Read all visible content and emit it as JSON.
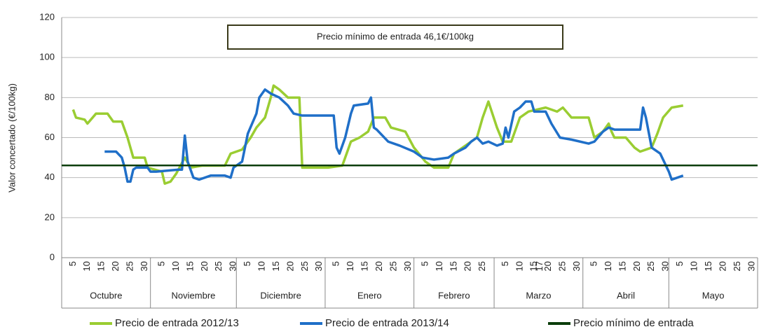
{
  "chart_data": {
    "type": "line",
    "annotation": "Precio mínimo de entrada 46,1€/100kg",
    "ylabel": "Valor concertado (€/100kg)",
    "ylim": [
      0,
      120
    ],
    "yticks": [
      0,
      20,
      40,
      60,
      80,
      100,
      120
    ],
    "grid": true,
    "xlim": [
      0,
      243
    ],
    "months": [
      "Octubre",
      "Noviembre",
      "Diciembre",
      "Enero",
      "Febrero",
      "Marzo",
      "Abril",
      "Mayo"
    ],
    "month_bounds": [
      0,
      31,
      61,
      92,
      123,
      151,
      182,
      212,
      243
    ],
    "xticks": [
      {
        "value": 4,
        "label": "5"
      },
      {
        "value": 9,
        "label": "10"
      },
      {
        "value": 14,
        "label": "15"
      },
      {
        "value": 19,
        "label": "20"
      },
      {
        "value": 24,
        "label": "25"
      },
      {
        "value": 29,
        "label": "30"
      },
      {
        "value": 35,
        "label": "5"
      },
      {
        "value": 40,
        "label": "10"
      },
      {
        "value": 45,
        "label": "15"
      },
      {
        "value": 50,
        "label": "20"
      },
      {
        "value": 55,
        "label": "25"
      },
      {
        "value": 60,
        "label": "30"
      },
      {
        "value": 65,
        "label": "5"
      },
      {
        "value": 70,
        "label": "10"
      },
      {
        "value": 75,
        "label": "15"
      },
      {
        "value": 80,
        "label": "20"
      },
      {
        "value": 85,
        "label": "25"
      },
      {
        "value": 90,
        "label": "30"
      },
      {
        "value": 96,
        "label": "5"
      },
      {
        "value": 101,
        "label": "10"
      },
      {
        "value": 106,
        "label": "15"
      },
      {
        "value": 111,
        "label": "20"
      },
      {
        "value": 116,
        "label": "25"
      },
      {
        "value": 121,
        "label": "30"
      },
      {
        "value": 127,
        "label": "5"
      },
      {
        "value": 132,
        "label": "10"
      },
      {
        "value": 137,
        "label": "15"
      },
      {
        "value": 142,
        "label": "20"
      },
      {
        "value": 147,
        "label": "25"
      },
      {
        "value": 155,
        "label": "5"
      },
      {
        "value": 160,
        "label": "10"
      },
      {
        "value": 165,
        "label": "15"
      },
      {
        "value": 167,
        "label": "17"
      },
      {
        "value": 170,
        "label": "20"
      },
      {
        "value": 175,
        "label": "25"
      },
      {
        "value": 180,
        "label": "30"
      },
      {
        "value": 186,
        "label": "5"
      },
      {
        "value": 191,
        "label": "10"
      },
      {
        "value": 196,
        "label": "15"
      },
      {
        "value": 201,
        "label": "20"
      },
      {
        "value": 206,
        "label": "25"
      },
      {
        "value": 211,
        "label": "30"
      },
      {
        "value": 216,
        "label": "5"
      },
      {
        "value": 221,
        "label": "10"
      },
      {
        "value": 226,
        "label": "15"
      },
      {
        "value": 231,
        "label": "20"
      },
      {
        "value": 236,
        "label": "25"
      },
      {
        "value": 241,
        "label": "30"
      }
    ],
    "series": [
      {
        "name": "Precio de entrada 2012/13",
        "color": "#9acd32",
        "x": [
          4,
          5,
          8,
          9,
          12,
          16,
          18,
          21,
          23,
          25,
          29,
          30,
          35,
          36,
          38,
          40,
          43,
          45,
          49,
          57,
          59,
          63,
          66,
          68,
          71,
          73,
          74,
          76,
          79,
          82,
          83,
          84,
          93,
          98,
          101,
          104,
          107,
          109,
          113,
          115,
          120,
          123,
          127,
          130,
          135,
          137,
          140,
          145,
          147,
          149,
          152,
          154,
          157,
          160,
          163,
          169,
          173,
          175,
          178,
          184,
          186,
          189,
          191,
          192,
          193,
          197,
          200,
          202,
          206,
          208,
          210,
          213,
          217
        ],
        "values": [
          74,
          70,
          69,
          67,
          72,
          72,
          68,
          68,
          60,
          50,
          50,
          45,
          43,
          37,
          38,
          42,
          50,
          45,
          46,
          46,
          52,
          54,
          60,
          65,
          70,
          80,
          86,
          84,
          80,
          80,
          80,
          45,
          45,
          46,
          58,
          60,
          63,
          70,
          70,
          65,
          63,
          55,
          48,
          45,
          45,
          52,
          55,
          60,
          70,
          78,
          65,
          58,
          58,
          70,
          73,
          75,
          73,
          75,
          70,
          70,
          60,
          63,
          67,
          63,
          60,
          60,
          55,
          53,
          55,
          62,
          70,
          75,
          76
        ]
      },
      {
        "name": "Precio de entrada 2013/14",
        "color": "#1f6fc8",
        "x": [
          15,
          19,
          21,
          22,
          23,
          24,
          25,
          26,
          30,
          31,
          33,
          41,
          42,
          43,
          44,
          45,
          46,
          48,
          52,
          57,
          59,
          60,
          63,
          64,
          65,
          68,
          69,
          71,
          73,
          76,
          79,
          81,
          84,
          95,
          96,
          97,
          99,
          101,
          102,
          107,
          108,
          109,
          110,
          114,
          118,
          123,
          126,
          130,
          135,
          137,
          141,
          143,
          145,
          147,
          149,
          152,
          154,
          155,
          156,
          158,
          160,
          162,
          164,
          165,
          169,
          171,
          174,
          178,
          184,
          186,
          189,
          191,
          193,
          202,
          203,
          204,
          206,
          209,
          212,
          213,
          217
        ],
        "values": [
          53,
          53,
          50,
          45,
          38,
          38,
          44,
          45,
          45,
          43,
          43,
          44,
          44,
          61,
          48,
          44,
          40,
          39,
          41,
          41,
          40,
          45,
          48,
          55,
          62,
          72,
          80,
          84,
          82,
          80,
          76,
          72,
          71,
          71,
          55,
          52,
          60,
          72,
          76,
          77,
          80,
          65,
          64,
          58,
          56,
          53,
          50,
          49,
          50,
          52,
          55,
          58,
          60,
          57,
          58,
          56,
          57,
          65,
          60,
          73,
          75,
          78,
          78,
          73,
          73,
          67,
          60,
          59,
          57,
          58,
          63,
          65,
          64,
          64,
          75,
          70,
          55,
          52,
          43,
          39,
          41
        ]
      },
      {
        "name": "Precio mínimo de entrada",
        "color": "#0b3d0b",
        "x": [
          0,
          243
        ],
        "values": [
          46.1,
          46.1
        ]
      }
    ]
  }
}
